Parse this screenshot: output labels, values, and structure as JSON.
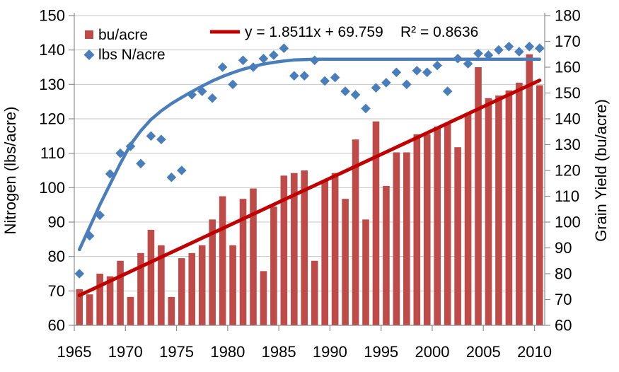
{
  "chart_data": {
    "type": "combo",
    "title": "",
    "years": [
      1965,
      1966,
      1967,
      1968,
      1969,
      1970,
      1971,
      1972,
      1973,
      1974,
      1975,
      1976,
      1977,
      1978,
      1979,
      1980,
      1981,
      1982,
      1983,
      1984,
      1985,
      1986,
      1987,
      1988,
      1989,
      1990,
      1991,
      1992,
      1993,
      1994,
      1995,
      1996,
      1997,
      1998,
      1999,
      2000,
      2001,
      2002,
      2003,
      2004,
      2005,
      2006,
      2007,
      2008,
      2009,
      2010
    ],
    "x_tick_labels": [
      "1965",
      "1970",
      "1975",
      "1980",
      "1985",
      "1990",
      "1995",
      "2000",
      "2005",
      "2010"
    ],
    "left_axis": {
      "label": "Nitrogen (lbs/acre)",
      "min": 60,
      "max": 150,
      "ticks": [
        150,
        140,
        130,
        120,
        110,
        100,
        90,
        80,
        70,
        60
      ]
    },
    "right_axis": {
      "label": "Grain Yield (bu/acre)",
      "min": 60,
      "max": 180,
      "ticks": [
        180,
        170,
        160,
        150,
        140,
        130,
        120,
        110,
        100,
        90,
        80,
        70,
        60
      ]
    },
    "bars": {
      "label": "bu/acre",
      "color": "#BE4B48",
      "values": [
        74,
        72,
        80,
        79,
        85,
        71,
        88,
        97,
        91,
        71,
        86,
        88,
        91,
        101,
        110,
        91,
        109,
        113,
        81,
        106,
        118,
        119,
        120,
        85,
        116,
        119,
        109,
        132,
        101,
        139,
        114,
        127,
        127,
        134,
        134,
        137,
        138,
        129,
        142,
        160,
        148,
        149,
        151,
        154,
        165,
        153
      ]
    },
    "points": {
      "label": "lbs N/acre",
      "color": "#4A7EBB",
      "marker": "diamond",
      "values": [
        75,
        86,
        92,
        104,
        110,
        112,
        107,
        115,
        114,
        103,
        105,
        127,
        128,
        126,
        135,
        130,
        137,
        135,
        137.5,
        138.5,
        140.5,
        132.5,
        132.5,
        137,
        131,
        132,
        128,
        127,
        123,
        129,
        130.5,
        133.5,
        130,
        134,
        133.5,
        135.5,
        128,
        137.5,
        136,
        139,
        138.5,
        140,
        141,
        139.5,
        141,
        140.5
      ]
    },
    "fitted_curve": {
      "color": "#4A7EBB",
      "values": [
        82,
        88.5,
        95,
        101,
        107,
        112.5,
        116.5,
        119.8,
        122.3,
        124.4,
        126.2,
        127.9,
        129.5,
        131,
        132.3,
        133.4,
        134.4,
        135.2,
        135.9,
        136.4,
        136.8,
        137.1,
        137.2,
        137.3,
        137.3,
        137.3,
        137.3,
        137.3,
        137.3,
        137.3,
        137.3,
        137.3,
        137.3,
        137.3,
        137.3,
        137.3,
        137.3,
        137.3,
        137.3,
        137.3,
        137.3,
        137.3,
        137.3,
        137.3,
        137.3,
        137.3
      ]
    },
    "trend": {
      "equation": "y = 1.8511x + 69.759",
      "r2": "R² = 0.8636",
      "slope": 1.8511,
      "intercept": 69.759,
      "color": "#C00000"
    },
    "colors": {
      "background": "#FFFFFF",
      "gridline": "#C6C6C6",
      "axis": "#8E8E8E",
      "text": "#000000"
    }
  }
}
